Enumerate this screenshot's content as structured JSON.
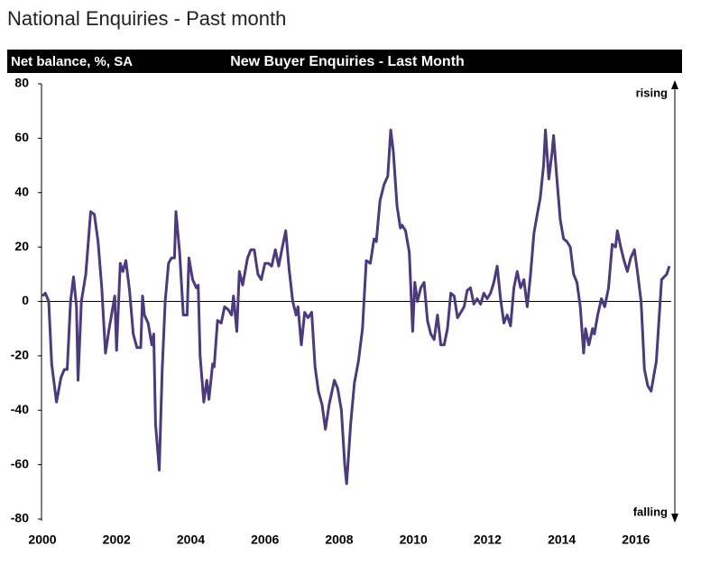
{
  "page_title": "National Enquiries - Past month",
  "chart_data": {
    "type": "line",
    "title": "New Buyer Enquiries - Last Month",
    "y_label": "Net balance, %, SA",
    "annotations": [
      "rising",
      "falling"
    ],
    "color": "#4b3a7c",
    "xlim": [
      2000,
      2017
    ],
    "xticks": [
      2000,
      2002,
      2004,
      2006,
      2008,
      2010,
      2012,
      2014,
      2016
    ],
    "ylim": [
      -80,
      80
    ],
    "yticks": [
      -80,
      -60,
      -40,
      -20,
      0,
      20,
      40,
      60,
      80
    ],
    "zero_line": true,
    "x": [
      2000.0,
      2000.08,
      2000.17,
      2000.25,
      2000.38,
      2000.5,
      2000.59,
      2000.67,
      2000.76,
      2000.84,
      2000.92,
      2000.96,
      2001.05,
      2001.17,
      2001.3,
      2001.4,
      2001.5,
      2001.6,
      2001.7,
      2001.8,
      2001.95,
      2002.0,
      2002.1,
      2002.17,
      2002.25,
      2002.35,
      2002.45,
      2002.55,
      2002.65,
      2002.7,
      2002.75,
      2002.85,
      2002.95,
      2003.0,
      2003.05,
      2003.15,
      2003.23,
      2003.31,
      2003.4,
      2003.48,
      2003.56,
      2003.6,
      2003.7,
      2003.8,
      2003.9,
      2003.95,
      2004.05,
      2004.15,
      2004.2,
      2004.25,
      2004.35,
      2004.43,
      2004.49,
      2004.59,
      2004.63,
      2004.72,
      2004.82,
      2004.91,
      2005.01,
      2005.1,
      2005.15,
      2005.24,
      2005.31,
      2005.4,
      2005.53,
      2005.62,
      2005.71,
      2005.81,
      2005.9,
      2006.0,
      2006.09,
      2006.18,
      2006.28,
      2006.37,
      2006.47,
      2006.56,
      2006.65,
      2006.75,
      2006.84,
      2006.89,
      2006.98,
      2007.07,
      2007.16,
      2007.26,
      2007.35,
      2007.44,
      2007.54,
      2007.63,
      2007.73,
      2007.87,
      2007.96,
      2008.06,
      2008.15,
      2008.2,
      2008.31,
      2008.41,
      2008.52,
      2008.63,
      2008.73,
      2008.84,
      2008.94,
      2009.0,
      2009.1,
      2009.21,
      2009.31,
      2009.39,
      2009.46,
      2009.56,
      2009.65,
      2009.7,
      2009.79,
      2009.89,
      2009.98,
      2010.04,
      2010.11,
      2010.2,
      2010.29,
      2010.38,
      2010.47,
      2010.56,
      2010.65,
      2010.74,
      2010.83,
      2010.92,
      2011.01,
      2011.1,
      2011.19,
      2011.28,
      2011.37,
      2011.45,
      2011.54,
      2011.63,
      2011.72,
      2011.81,
      2011.9,
      2011.99,
      2012.08,
      2012.17,
      2012.26,
      2012.35,
      2012.44,
      2012.53,
      2012.62,
      2012.71,
      2012.8,
      2012.89,
      2012.98,
      2013.07,
      2013.16,
      2013.25,
      2013.34,
      2013.42,
      2013.51,
      2013.56,
      2013.65,
      2013.74,
      2013.78,
      2013.87,
      2013.96,
      2014.05,
      2014.14,
      2014.23,
      2014.32,
      2014.41,
      2014.5,
      2014.59,
      2014.64,
      2014.73,
      2014.83,
      2014.88,
      2014.97,
      2015.07,
      2015.16,
      2015.26,
      2015.36,
      2015.45,
      2015.5,
      2015.59,
      2015.68,
      2015.77,
      2015.86,
      2015.96,
      2016.05,
      2016.14,
      2016.23,
      2016.32,
      2016.41,
      2016.55,
      2016.69,
      2016.83,
      2016.9
    ],
    "values": [
      2,
      3,
      0,
      -23,
      -37,
      -28,
      -25,
      -25,
      0,
      9,
      -2,
      -29,
      0,
      10,
      33,
      32,
      22,
      5,
      -19,
      -10,
      2,
      -18,
      14,
      11,
      15,
      4,
      -12,
      -17,
      -17,
      2,
      -5,
      -8,
      -16,
      -12,
      -45,
      -62,
      -25,
      0,
      14,
      16,
      16,
      33,
      18,
      -5,
      -5,
      16,
      8,
      5,
      6,
      -20,
      -37,
      -29,
      -36,
      -23,
      -24,
      -7,
      -8,
      -2,
      -3,
      -5,
      2,
      -11,
      11,
      6,
      16,
      19,
      19,
      10,
      8,
      14,
      14,
      13,
      19,
      13,
      20,
      26,
      12,
      0,
      -5,
      -2,
      -16,
      -4,
      -6,
      -4,
      -24,
      -33,
      -38,
      -47,
      -38,
      -29,
      -32,
      -40,
      -60,
      -67,
      -45,
      -30,
      -22,
      -10,
      15,
      14,
      23,
      22,
      37,
      43,
      46,
      63,
      55,
      35,
      27,
      28,
      26,
      18,
      -11,
      7,
      0,
      5,
      7,
      -7,
      -12,
      -14,
      -5,
      -16,
      -16,
      -10,
      3,
      2,
      -6,
      -4,
      -2,
      4,
      5,
      -1,
      1,
      -1,
      3,
      1,
      3,
      7,
      13,
      1,
      -8,
      -5,
      -9,
      5,
      11,
      5,
      8,
      -2,
      10,
      25,
      32,
      38,
      50,
      63,
      45,
      55,
      61,
      45,
      30,
      23,
      22,
      20,
      10,
      7,
      -2,
      -19,
      -10,
      -16,
      -10,
      -12,
      -5,
      1,
      -2,
      5,
      21,
      20,
      26,
      20,
      15,
      11,
      16,
      19,
      10,
      0,
      -25,
      -31,
      -33,
      -22,
      8,
      10,
      13
    ]
  }
}
